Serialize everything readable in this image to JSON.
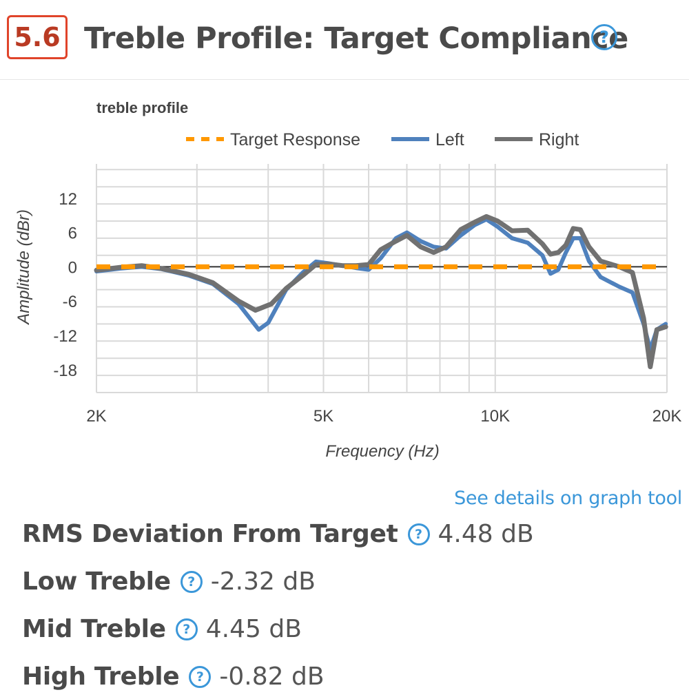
{
  "header": {
    "score": "5.6",
    "title": "Treble Profile: Target Compliance",
    "help_icon": "question-circle-icon"
  },
  "link": {
    "label": "See details on graph tool"
  },
  "metrics": [
    {
      "label": "RMS Deviation From Target",
      "value": "4.48 dB"
    },
    {
      "label": "Low Treble",
      "value": "-2.32 dB"
    },
    {
      "label": "Mid Treble",
      "value": "4.45 dB"
    },
    {
      "label": "High Treble",
      "value": "-0.82 dB"
    }
  ],
  "colors": {
    "accent": "#e0442a",
    "link": "#3b97d9",
    "target": "#ff9800",
    "left": "#4f81bd",
    "right": "#717171"
  },
  "chart_data": {
    "type": "line",
    "title": "treble profile",
    "xlabel": "Frequency (Hz)",
    "ylabel": "Amplitude (dBr)",
    "x_scale": "log",
    "xlim": [
      2000,
      20000
    ],
    "ylim": [
      -22,
      18
    ],
    "y_ticks": [
      12,
      6,
      0,
      -6,
      -12,
      -18
    ],
    "x_ticks": [
      {
        "value": 2000,
        "label": "2K"
      },
      {
        "value": 5000,
        "label": "5K"
      },
      {
        "value": 10000,
        "label": "10K"
      },
      {
        "value": 20000,
        "label": "20K"
      }
    ],
    "legend": [
      "Target Response",
      "Left",
      "Right"
    ],
    "series": [
      {
        "name": "Target Response",
        "style": "dashed",
        "points": [
          [
            2000,
            0
          ],
          [
            20000,
            0
          ]
        ]
      },
      {
        "name": "Left",
        "points": [
          [
            2000,
            -0.8
          ],
          [
            2200,
            -0.3
          ],
          [
            2400,
            0
          ],
          [
            2600,
            -0.4
          ],
          [
            2900,
            -1.5
          ],
          [
            3200,
            -3
          ],
          [
            3550,
            -6.5
          ],
          [
            3850,
            -11
          ],
          [
            4000,
            -9.8
          ],
          [
            4300,
            -4
          ],
          [
            4600,
            -1
          ],
          [
            4850,
            0.9
          ],
          [
            5100,
            0.6
          ],
          [
            5400,
            0.2
          ],
          [
            5700,
            -0.2
          ],
          [
            6000,
            -0.5
          ],
          [
            6300,
            1.5
          ],
          [
            6700,
            5
          ],
          [
            7000,
            6
          ],
          [
            7400,
            4.5
          ],
          [
            7800,
            3.5
          ],
          [
            8200,
            3.2
          ],
          [
            8700,
            5.5
          ],
          [
            9200,
            7.3
          ],
          [
            9650,
            8.3
          ],
          [
            10100,
            7
          ],
          [
            10700,
            5
          ],
          [
            11400,
            4.2
          ],
          [
            12100,
            2
          ],
          [
            12500,
            -1.2
          ],
          [
            12900,
            -0.5
          ],
          [
            13300,
            2.5
          ],
          [
            13700,
            5
          ],
          [
            14100,
            5
          ],
          [
            14600,
            1
          ],
          [
            15300,
            -1.8
          ],
          [
            16500,
            -3.5
          ],
          [
            17400,
            -4.5
          ],
          [
            18200,
            -10
          ],
          [
            18700,
            -14.5
          ],
          [
            19200,
            -11
          ],
          [
            19900,
            -10
          ]
        ]
      },
      {
        "name": "Right",
        "points": [
          [
            2000,
            -0.6
          ],
          [
            2200,
            -0.1
          ],
          [
            2400,
            0.2
          ],
          [
            2600,
            -0.3
          ],
          [
            2900,
            -1.3
          ],
          [
            3200,
            -2.8
          ],
          [
            3550,
            -6
          ],
          [
            3800,
            -7.6
          ],
          [
            4050,
            -6.5
          ],
          [
            4300,
            -3.8
          ],
          [
            4600,
            -1.5
          ],
          [
            4850,
            0.4
          ],
          [
            5100,
            0.5
          ],
          [
            5400,
            0.2
          ],
          [
            5700,
            0.2
          ],
          [
            6000,
            0.4
          ],
          [
            6300,
            3
          ],
          [
            6700,
            4.5
          ],
          [
            7000,
            5.5
          ],
          [
            7400,
            3.5
          ],
          [
            7800,
            2.5
          ],
          [
            8200,
            3.5
          ],
          [
            8700,
            6.5
          ],
          [
            9200,
            7.8
          ],
          [
            9650,
            8.8
          ],
          [
            10100,
            8
          ],
          [
            10700,
            6.3
          ],
          [
            11400,
            6.4
          ],
          [
            12100,
            4
          ],
          [
            12500,
            2.2
          ],
          [
            12900,
            2.5
          ],
          [
            13300,
            3.8
          ],
          [
            13700,
            6.7
          ],
          [
            14100,
            6.5
          ],
          [
            14600,
            3.5
          ],
          [
            15300,
            1
          ],
          [
            16500,
            0
          ],
          [
            17400,
            -1
          ],
          [
            18200,
            -9
          ],
          [
            18700,
            -17.5
          ],
          [
            19200,
            -11
          ],
          [
            19900,
            -10.5
          ]
        ]
      }
    ]
  }
}
